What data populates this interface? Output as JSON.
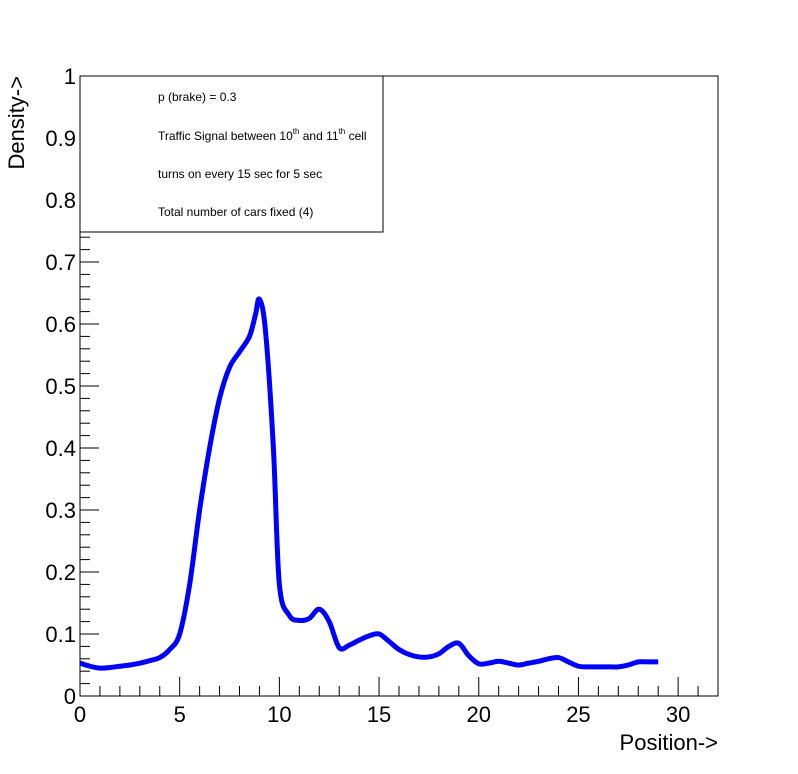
{
  "chart_data": {
    "type": "line",
    "title": "",
    "xlabel": "Position->",
    "ylabel": "Density->",
    "xlim": [
      0,
      32
    ],
    "ylim": [
      0,
      1
    ],
    "xticks": [
      0,
      5,
      10,
      15,
      20,
      25,
      30
    ],
    "yticks": [
      0,
      0.1,
      0.2,
      0.3,
      0.4,
      0.5,
      0.6,
      0.7,
      0.8,
      0.9,
      1
    ],
    "xtick_labels": [
      "0",
      "5",
      "10",
      "15",
      "20",
      "25",
      "30"
    ],
    "ytick_labels": [
      "0",
      "0.1",
      "0.2",
      "0.3",
      "0.4",
      "0.5",
      "0.6",
      "0.7",
      "0.8",
      "0.9",
      "1"
    ],
    "grid": false,
    "legend_position": "top-left",
    "annotations": {
      "line1": "p (brake) = 0.3",
      "line2_pre": "Traffic Signal between 10",
      "line2_sup1": "th",
      "line2_mid": " and 11",
      "line2_sup2": "th",
      "line2_post": " cell",
      "line3": "turns on every 15 sec for 5 sec",
      "line4": "Total number of cars fixed (4)"
    },
    "series": [
      {
        "color": "#0000ff",
        "x": [
          0,
          0.5,
          1,
          1.5,
          2,
          2.5,
          3,
          3.5,
          4,
          4.5,
          5,
          5.5,
          6,
          6.5,
          7,
          7.5,
          8,
          8.5,
          8.8,
          9,
          9.3,
          9.7,
          10,
          10.5,
          11,
          11.5,
          12,
          12.5,
          13,
          13.5,
          14,
          14.5,
          15,
          15.5,
          16,
          16.5,
          17,
          17.5,
          18,
          18.5,
          19,
          19.5,
          20,
          20.5,
          21,
          21.5,
          22,
          22.5,
          23,
          23.5,
          24,
          24.5,
          25,
          25.5,
          26,
          26.5,
          27,
          27.5,
          28,
          28.5,
          29
        ],
        "values": [
          0.053,
          0.048,
          0.045,
          0.046,
          0.048,
          0.05,
          0.053,
          0.057,
          0.062,
          0.075,
          0.1,
          0.18,
          0.3,
          0.4,
          0.48,
          0.53,
          0.555,
          0.58,
          0.615,
          0.64,
          0.59,
          0.4,
          0.18,
          0.13,
          0.122,
          0.125,
          0.14,
          0.12,
          0.078,
          0.082,
          0.09,
          0.097,
          0.1,
          0.088,
          0.075,
          0.067,
          0.063,
          0.063,
          0.068,
          0.08,
          0.085,
          0.065,
          0.052,
          0.053,
          0.056,
          0.053,
          0.05,
          0.053,
          0.056,
          0.06,
          0.062,
          0.055,
          0.048,
          0.047,
          0.047,
          0.047,
          0.047,
          0.05,
          0.055,
          0.055,
          0.055
        ]
      }
    ]
  }
}
